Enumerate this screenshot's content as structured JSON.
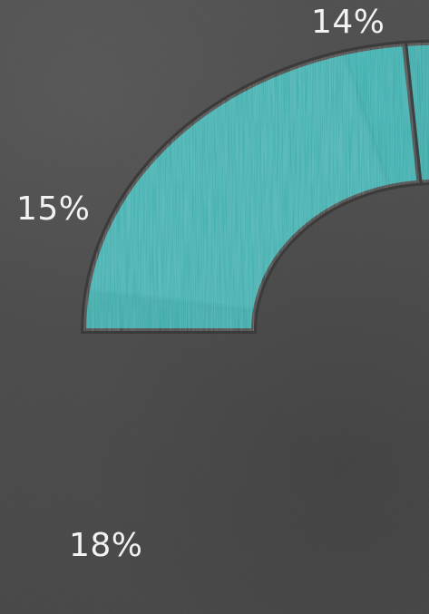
{
  "chart_data": {
    "type": "pie",
    "donut": true,
    "slices": [
      {
        "label": "14%",
        "value": 14,
        "color": "#2aa7a6"
      },
      {
        "label": "15%",
        "value": 15,
        "color": "#d9d9d9"
      },
      {
        "label": "18%",
        "value": 18,
        "color": "#2aa7a6"
      },
      {
        "label": "",
        "value": null,
        "color": "#d9d9d9"
      }
    ]
  }
}
